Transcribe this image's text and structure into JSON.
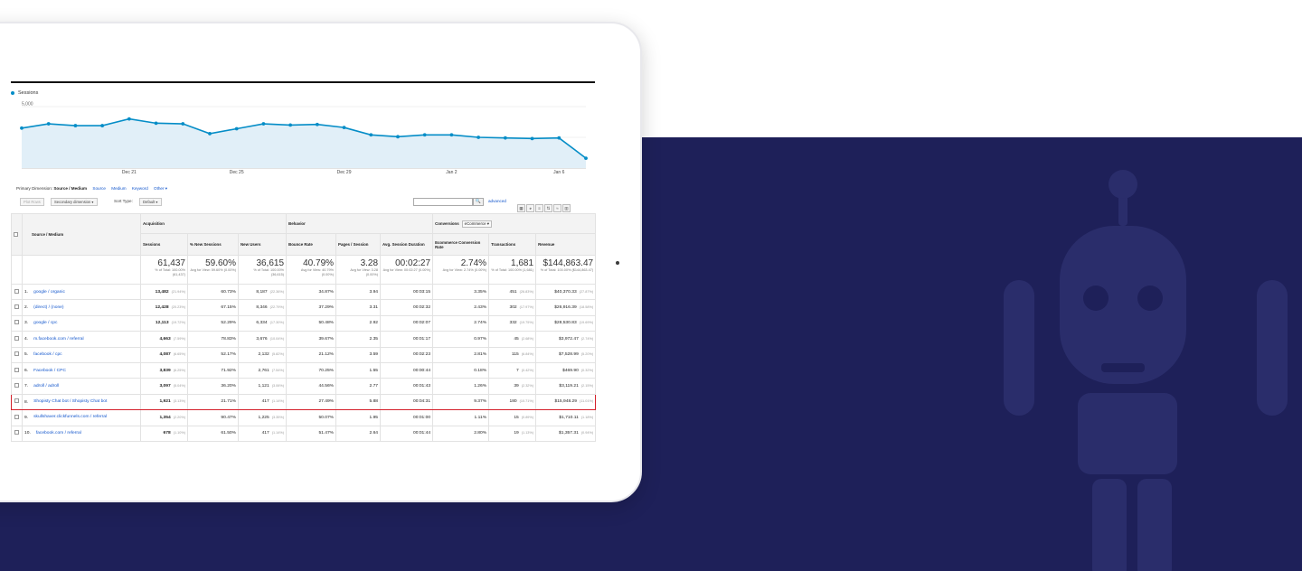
{
  "colors": {
    "navy": "#1e2059",
    "series": "#058dc7",
    "highlight": "#d4202a",
    "link": "#1155cc"
  },
  "chart": {
    "legend": "Sessions",
    "y_ticks": [
      "5,000",
      "2,500"
    ],
    "x_ticks": [
      "Dec 21",
      "Dec 25",
      "Dec 29",
      "Jan 2",
      "Jan 6"
    ]
  },
  "chart_data": {
    "type": "area",
    "title": "",
    "series": [
      {
        "name": "Sessions",
        "values": [
          3250,
          3600,
          3450,
          3450,
          4000,
          3650,
          3600,
          2800,
          3200,
          3600,
          3500,
          3550,
          3300,
          2700,
          2550,
          2700,
          2700,
          2500,
          2450,
          2400,
          2450,
          800
        ]
      }
    ],
    "ylim": [
      0,
      5000
    ],
    "x_tick_labels": [
      "Dec 21",
      "Dec 25",
      "Dec 29",
      "Jan 2",
      "Jan 6"
    ],
    "grid": true
  },
  "dimensions": {
    "label": "Primary Dimension:",
    "selected": "Source / Medium",
    "links": [
      "Source",
      "Medium",
      "Keyword",
      "Other ▾"
    ]
  },
  "controls": {
    "plot_rows": "Plot Rows",
    "secondary": "Secondary dimension ▾",
    "sort_label": "Sort Type:",
    "sort_value": "Default ▾",
    "advanced": "advanced",
    "search_icon": "search-icon"
  },
  "table": {
    "source_header": "Source / Medium",
    "groups": {
      "acquisition": "Acquisition",
      "behavior": "Behavior",
      "conversions": "Conversions",
      "conversions_select": "eCommerce ▾"
    },
    "columns": [
      "Sessions",
      "% New Sessions",
      "New Users",
      "Bounce Rate",
      "Pages / Session",
      "Avg. Session Duration",
      "Ecommerce Conversion Rate",
      "Transactions",
      "Revenue"
    ],
    "totals": [
      {
        "big": "61,437",
        "small": "% of Total: 100.00% (61,437)"
      },
      {
        "big": "59.60%",
        "small": "Avg for View: 59.60% (0.00%)"
      },
      {
        "big": "36,615",
        "small": "% of Total: 100.00% (36,615)"
      },
      {
        "big": "40.79%",
        "small": "Avg for View: 40.79% (0.00%)"
      },
      {
        "big": "3.28",
        "small": "Avg for View: 3.28 (0.00%)"
      },
      {
        "big": "00:02:27",
        "small": "Avg for View: 00:02:27 (0.00%)"
      },
      {
        "big": "2.74%",
        "small": "Avg for View: 2.74% (0.00%)"
      },
      {
        "big": "1,681",
        "small": "% of Total: 100.00% (1,681)"
      },
      {
        "big": "$144,863.47",
        "small": "% of Total: 100.00% ($144,863.47)"
      }
    ],
    "rows": [
      {
        "n": "1.",
        "src": "google / organic",
        "sessions": "13,482",
        "sp": "(21.94%)",
        "newpct": "60.73%",
        "users": "8,187",
        "up": "(22.36%)",
        "bounce": "34.87%",
        "pages": "3.94",
        "dur": "00:03:15",
        "conv": "3.35%",
        "trans": "451",
        "tp": "(26.83%)",
        "rev": "$40,370.33",
        "rp": "(27.87%)"
      },
      {
        "n": "2.",
        "src": "(direct) / (none)",
        "sessions": "12,428",
        "sp": "(20.23%)",
        "newpct": "67.15%",
        "users": "8,346",
        "up": "(22.79%)",
        "bounce": "37.29%",
        "pages": "3.31",
        "dur": "00:02:32",
        "conv": "2.43%",
        "trans": "302",
        "tp": "(17.97%)",
        "rev": "$26,916.39",
        "rp": "(18.58%)"
      },
      {
        "n": "3.",
        "src": "google / cpc",
        "sessions": "12,113",
        "sp": "(19.72%)",
        "newpct": "52.29%",
        "users": "6,334",
        "up": "(17.30%)",
        "bounce": "50.48%",
        "pages": "2.92",
        "dur": "00:02:07",
        "conv": "2.74%",
        "trans": "332",
        "tp": "(19.75%)",
        "rev": "$28,530.83",
        "rp": "(19.69%)"
      },
      {
        "n": "4.",
        "src": "m.facebook.com / referral",
        "sessions": "4,663",
        "sp": "(7.59%)",
        "newpct": "78.83%",
        "users": "3,676",
        "up": "(10.04%)",
        "bounce": "39.67%",
        "pages": "2.35",
        "dur": "00:01:17",
        "conv": "0.97%",
        "trans": "45",
        "tp": "(2.68%)",
        "rev": "$3,972.47",
        "rp": "(2.74%)"
      },
      {
        "n": "5.",
        "src": "facebook / cpc",
        "sessions": "4,087",
        "sp": "(6.65%)",
        "newpct": "52.17%",
        "users": "2,132",
        "up": "(5.82%)",
        "bounce": "21.12%",
        "pages": "3.59",
        "dur": "00:02:23",
        "conv": "2.81%",
        "trans": "115",
        "tp": "(6.84%)",
        "rev": "$7,528.99",
        "rp": "(5.20%)"
      },
      {
        "n": "6.",
        "src": "Facebook / CPC",
        "sessions": "3,839",
        "sp": "(6.25%)",
        "newpct": "71.92%",
        "users": "2,761",
        "up": "(7.54%)",
        "bounce": "70.25%",
        "pages": "1.55",
        "dur": "00:00:44",
        "conv": "0.18%",
        "trans": "7",
        "tp": "(0.42%)",
        "rev": "$469.90",
        "rp": "(0.32%)"
      },
      {
        "n": "7.",
        "src": "adroll / adroll",
        "sessions": "3,097",
        "sp": "(5.04%)",
        "newpct": "36.20%",
        "users": "1,121",
        "up": "(3.06%)",
        "bounce": "44.56%",
        "pages": "2.77",
        "dur": "00:01:43",
        "conv": "1.26%",
        "trans": "39",
        "tp": "(2.32%)",
        "rev": "$3,119.21",
        "rp": "(2.15%)"
      },
      {
        "n": "8.",
        "src": "Shopisty Chat bot / Shopisty Chat bot",
        "sessions": "1,921",
        "sp": "(3.13%)",
        "newpct": "21.71%",
        "users": "417",
        "up": "(1.14%)",
        "bounce": "27.49%",
        "pages": "5.88",
        "dur": "00:04:31",
        "conv": "9.37%",
        "trans": "180",
        "tp": "(10.71%)",
        "rev": "$15,948.29",
        "rp": "(11.01%)"
      },
      {
        "n": "9.",
        "src": "skullshaver.clickfunnels.com / referral",
        "sessions": "1,354",
        "sp": "(2.20%)",
        "newpct": "90.47%",
        "users": "1,225",
        "up": "(3.35%)",
        "bounce": "50.07%",
        "pages": "1.95",
        "dur": "00:01:00",
        "conv": "1.11%",
        "trans": "15",
        "tp": "(0.89%)",
        "rev": "$1,710.11",
        "rp": "(1.18%)"
      },
      {
        "n": "10.",
        "src": "facebook.com / referral",
        "sessions": "678",
        "sp": "(1.10%)",
        "newpct": "61.50%",
        "users": "417",
        "up": "(1.14%)",
        "bounce": "51.47%",
        "pages": "2.64",
        "dur": "00:01:44",
        "conv": "2.80%",
        "trans": "19",
        "tp": "(1.13%)",
        "rev": "$1,357.31",
        "rp": "(0.94%)"
      }
    ]
  }
}
